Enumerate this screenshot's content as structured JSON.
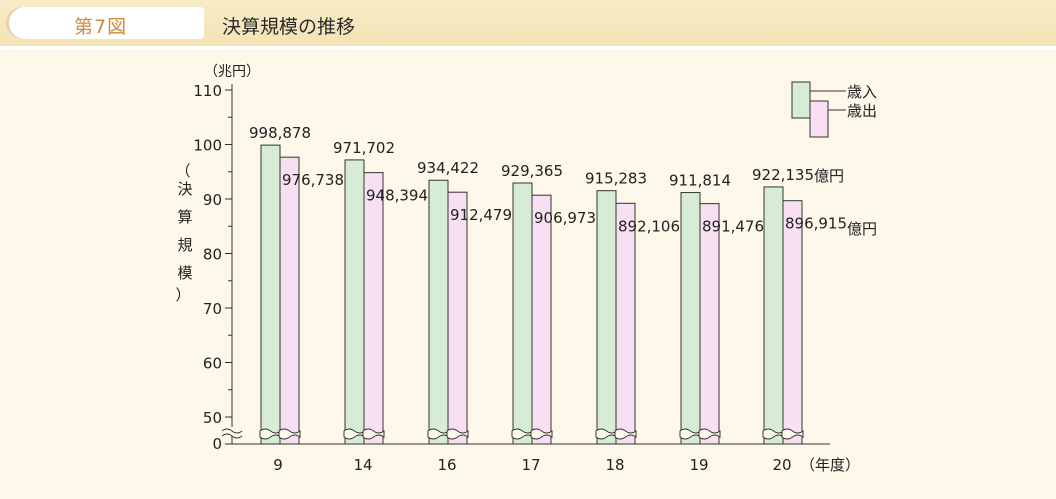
{
  "header": {
    "figure_label": "第7図",
    "title": "決算規模の推移"
  },
  "chart_data": {
    "type": "bar",
    "title": "決算規模の推移",
    "ylabel": "決算規模",
    "yunit": "（兆円）",
    "xunit": "（年度）",
    "categories": [
      "9",
      "14",
      "16",
      "17",
      "18",
      "19",
      "20"
    ],
    "series": [
      {
        "name": "歳入",
        "color": "#d6ecd4",
        "values": [
          998878,
          971702,
          934422,
          929365,
          915283,
          911814,
          922135
        ],
        "labels": [
          "998,878",
          "971,702",
          "934,422",
          "929,365",
          "915,283",
          "911,814",
          "922,135"
        ]
      },
      {
        "name": "歳出",
        "color": "#f8e0f2",
        "values": [
          976738,
          948394,
          912479,
          906973,
          892106,
          891476,
          896915
        ],
        "labels": [
          "976,738",
          "948,394",
          "912,479",
          "906,973",
          "892,106",
          "891,476",
          "896,915"
        ]
      }
    ],
    "value_unit_label": "億円",
    "y_ticks": [
      "0",
      "50",
      "60",
      "70",
      "80",
      "90",
      "100",
      "110"
    ],
    "ylim": [
      45,
      110
    ],
    "axis_break": true,
    "grid": false,
    "legend_position": "top-right"
  }
}
